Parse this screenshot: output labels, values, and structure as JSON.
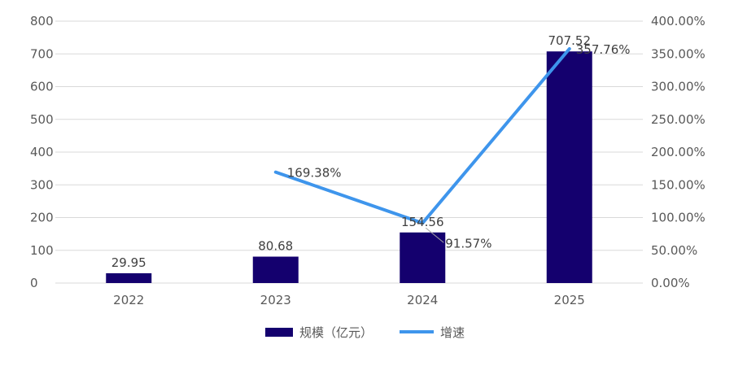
{
  "chart_data": {
    "type": "bar",
    "categories": [
      "2022",
      "2023",
      "2024",
      "2025"
    ],
    "series": [
      {
        "name": "规模（亿元）",
        "type": "bar",
        "axis": "left",
        "values": [
          29.95,
          80.68,
          154.56,
          707.52
        ],
        "labels": [
          "29.95",
          "80.68",
          "154.56",
          "707.52"
        ]
      },
      {
        "name": "增速",
        "type": "line",
        "axis": "right",
        "values": [
          null,
          169.38,
          91.57,
          357.76
        ],
        "labels": [
          "",
          "169.38%",
          "91.57%",
          "357.76%"
        ]
      }
    ],
    "y_left": {
      "min": 0,
      "max": 800,
      "ticks": [
        "0",
        "100",
        "200",
        "300",
        "400",
        "500",
        "600",
        "700",
        "800"
      ]
    },
    "y_right": {
      "min": 0,
      "max": 400,
      "ticks": [
        "0.00%",
        "50.00%",
        "100.00%",
        "150.00%",
        "200.00%",
        "250.00%",
        "300.00%",
        "350.00%",
        "400.00%"
      ]
    },
    "grid": true,
    "legend": "bottom",
    "colors": {
      "bar": "#14006E",
      "line": "#3E95EC",
      "grid": "#D9D9D9"
    }
  }
}
